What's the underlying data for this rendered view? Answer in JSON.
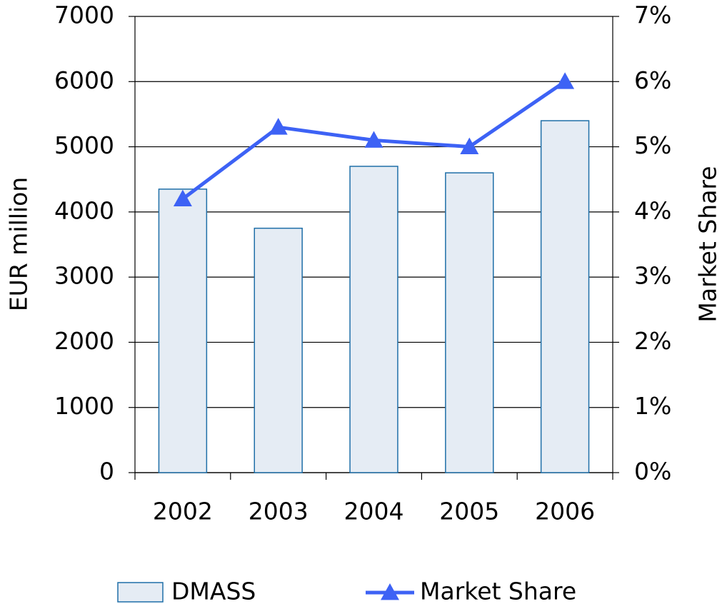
{
  "chart_data": {
    "type": "bar",
    "categories": [
      "2002",
      "2003",
      "2004",
      "2005",
      "2006"
    ],
    "series": [
      {
        "name": "DMASS",
        "type": "bar",
        "color": "#e5ecf4",
        "edge_color": "#1f6fa8",
        "values": [
          4350,
          3750,
          4700,
          4600,
          5400
        ]
      },
      {
        "name": "Market Share",
        "type": "line",
        "axis": "y2",
        "color": "#3d62f5",
        "values": [
          4.2,
          5.3,
          5.1,
          5.0,
          6.0
        ]
      }
    ],
    "ylabel": "EUR million",
    "y2label": "Market Share",
    "ylim": [
      0,
      7000
    ],
    "yticks": [
      0,
      1000,
      2000,
      3000,
      4000,
      5000,
      6000,
      7000
    ],
    "y2lim": [
      0,
      7
    ],
    "y2ticks": [
      {
        "value": 0,
        "label": "0%"
      },
      {
        "value": 1,
        "label": "1%"
      },
      {
        "value": 2,
        "label": "2%"
      },
      {
        "value": 3,
        "label": "3%"
      },
      {
        "value": 4,
        "label": "4%"
      },
      {
        "value": 5,
        "label": "5%"
      },
      {
        "value": 6,
        "label": "6%"
      },
      {
        "value": 7,
        "label": "7%"
      }
    ],
    "grid": true,
    "legend": "bottom"
  }
}
